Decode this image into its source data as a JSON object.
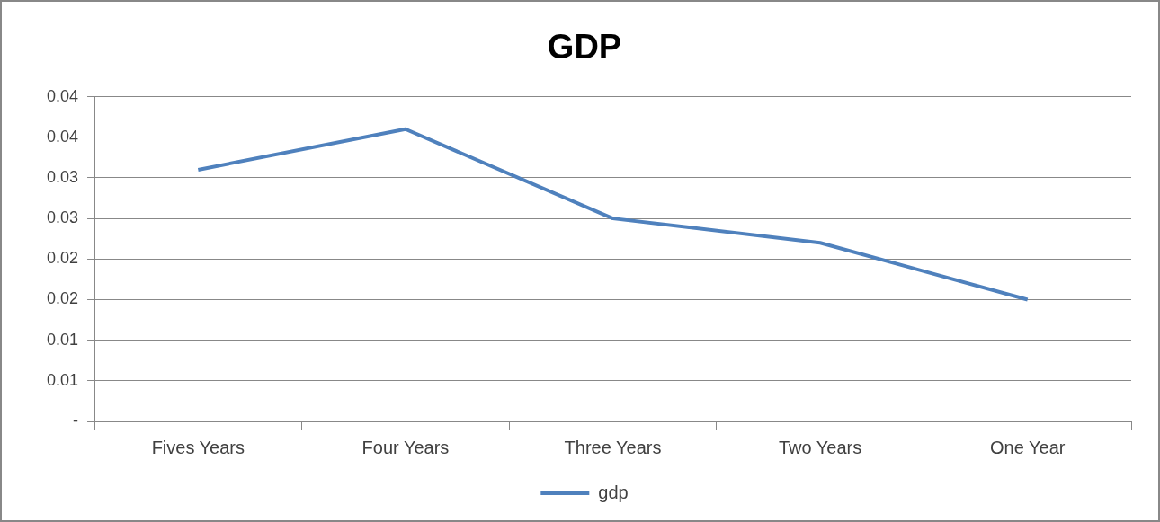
{
  "chart_data": {
    "type": "line",
    "title": "GDP",
    "categories": [
      "Fives Years",
      "Four Years",
      "Three Years",
      "Two Years",
      "One Year"
    ],
    "series": [
      {
        "name": "gdp",
        "color": "#4f81bd",
        "values": [
          0.031,
          0.036,
          0.025,
          0.022,
          0.015
        ]
      }
    ],
    "ylim": [
      0,
      0.04
    ],
    "yticks": [
      {
        "value": 0,
        "label": "-"
      },
      {
        "value": 0.005,
        "label": "0.01"
      },
      {
        "value": 0.01,
        "label": "0.01"
      },
      {
        "value": 0.015,
        "label": "0.02"
      },
      {
        "value": 0.02,
        "label": "0.02"
      },
      {
        "value": 0.025,
        "label": "0.03"
      },
      {
        "value": 0.03,
        "label": "0.03"
      },
      {
        "value": 0.035,
        "label": "0.04"
      },
      {
        "value": 0.04,
        "label": "0.04"
      }
    ],
    "grid": "y",
    "legend": "bottom",
    "marker": "none",
    "line_style": "solid"
  }
}
